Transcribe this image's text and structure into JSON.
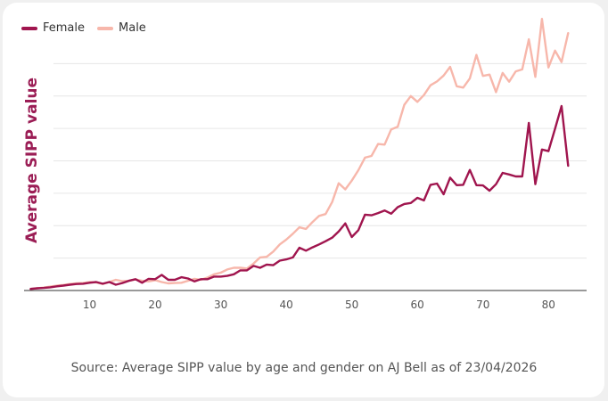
{
  "colors": {
    "female": "#a0154e",
    "male": "#f7b7ab",
    "grid": "#e6e6e6",
    "axis": "#333333"
  },
  "chart_data": {
    "type": "line",
    "title": "",
    "xlabel": "",
    "ylabel": "Average SIPP value",
    "source": "Source: Average SIPP value by age and gender on AJ Bell as of 23/04/2026",
    "legend_position": "top-left",
    "grid": "horizontal",
    "xlim": [
      0,
      85
    ],
    "ylim": [
      0,
      8
    ],
    "x_ticks": [
      10,
      20,
      30,
      40,
      50,
      60,
      70,
      80
    ],
    "x": [
      1,
      2,
      3,
      4,
      5,
      6,
      7,
      8,
      9,
      10,
      11,
      12,
      13,
      14,
      15,
      16,
      17,
      18,
      19,
      20,
      21,
      22,
      23,
      24,
      25,
      26,
      27,
      28,
      29,
      30,
      31,
      32,
      33,
      34,
      35,
      36,
      37,
      38,
      39,
      40,
      41,
      42,
      43,
      44,
      45,
      46,
      47,
      48,
      49,
      50,
      51,
      52,
      53,
      54,
      55,
      56,
      57,
      58,
      59,
      60,
      61,
      62,
      63,
      64,
      65,
      66,
      67,
      68,
      69,
      70,
      71,
      72,
      73,
      74,
      75,
      76,
      77,
      78,
      79,
      80,
      81,
      82,
      83
    ],
    "series": [
      {
        "name": "Female",
        "values": [
          0.05,
          0.07,
          0.08,
          0.1,
          0.13,
          0.15,
          0.18,
          0.2,
          0.21,
          0.24,
          0.26,
          0.21,
          0.26,
          0.18,
          0.23,
          0.3,
          0.35,
          0.24,
          0.36,
          0.35,
          0.48,
          0.33,
          0.33,
          0.41,
          0.37,
          0.28,
          0.35,
          0.35,
          0.43,
          0.43,
          0.45,
          0.5,
          0.62,
          0.62,
          0.76,
          0.7,
          0.8,
          0.78,
          0.92,
          0.96,
          1.02,
          1.32,
          1.23,
          1.33,
          1.42,
          1.52,
          1.63,
          1.82,
          2.07,
          1.65,
          1.86,
          2.34,
          2.32,
          2.39,
          2.47,
          2.37,
          2.57,
          2.67,
          2.7,
          2.86,
          2.78,
          3.26,
          3.3,
          2.97,
          3.48,
          3.25,
          3.26,
          3.72,
          3.25,
          3.24,
          3.08,
          3.28,
          3.63,
          3.58,
          3.52,
          3.52,
          5.17,
          3.28,
          4.35,
          4.3,
          4.99,
          5.69,
          3.85
        ]
      },
      {
        "name": "Male",
        "values": [
          0.05,
          0.07,
          0.09,
          0.12,
          0.15,
          0.17,
          0.2,
          0.22,
          0.23,
          0.26,
          0.25,
          0.2,
          0.26,
          0.33,
          0.29,
          0.3,
          0.34,
          0.3,
          0.28,
          0.32,
          0.26,
          0.22,
          0.23,
          0.24,
          0.3,
          0.36,
          0.33,
          0.4,
          0.5,
          0.55,
          0.65,
          0.7,
          0.7,
          0.68,
          0.83,
          1.02,
          1.04,
          1.2,
          1.42,
          1.57,
          1.75,
          1.95,
          1.9,
          2.11,
          2.3,
          2.36,
          2.73,
          3.31,
          3.12,
          3.39,
          3.71,
          4.1,
          4.15,
          4.52,
          4.5,
          4.97,
          5.05,
          5.73,
          6.0,
          5.82,
          6.03,
          6.33,
          6.45,
          6.63,
          6.9,
          6.3,
          6.26,
          6.54,
          7.27,
          6.62,
          6.66,
          6.12,
          6.71,
          6.44,
          6.76,
          6.82,
          7.75,
          6.59,
          8.38,
          6.88,
          7.4,
          7.05,
          7.94
        ]
      }
    ]
  }
}
